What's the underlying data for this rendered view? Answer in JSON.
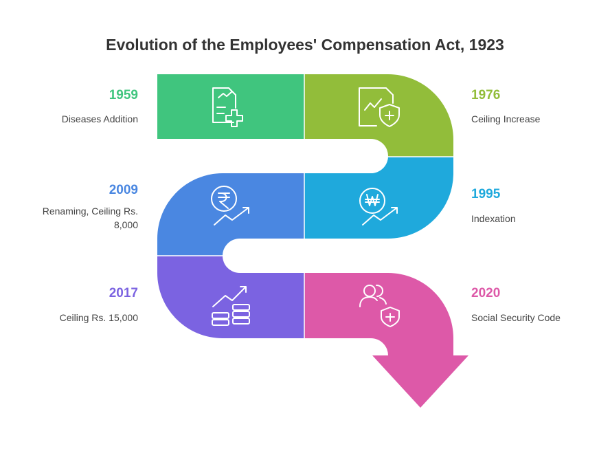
{
  "title": "Evolution of the Employees' Compensation Act, 1923",
  "milestones": [
    {
      "year": "1959",
      "label": "Diseases Addition"
    },
    {
      "year": "1976",
      "label": "Ceiling Increase"
    },
    {
      "year": "1995",
      "label": "Indexation"
    },
    {
      "year": "2009",
      "label": "Renaming, Ceiling Rs. 8,000"
    },
    {
      "year": "2017",
      "label": "Ceiling Rs. 15,000"
    },
    {
      "year": "2020",
      "label": "Social Security Code"
    }
  ]
}
